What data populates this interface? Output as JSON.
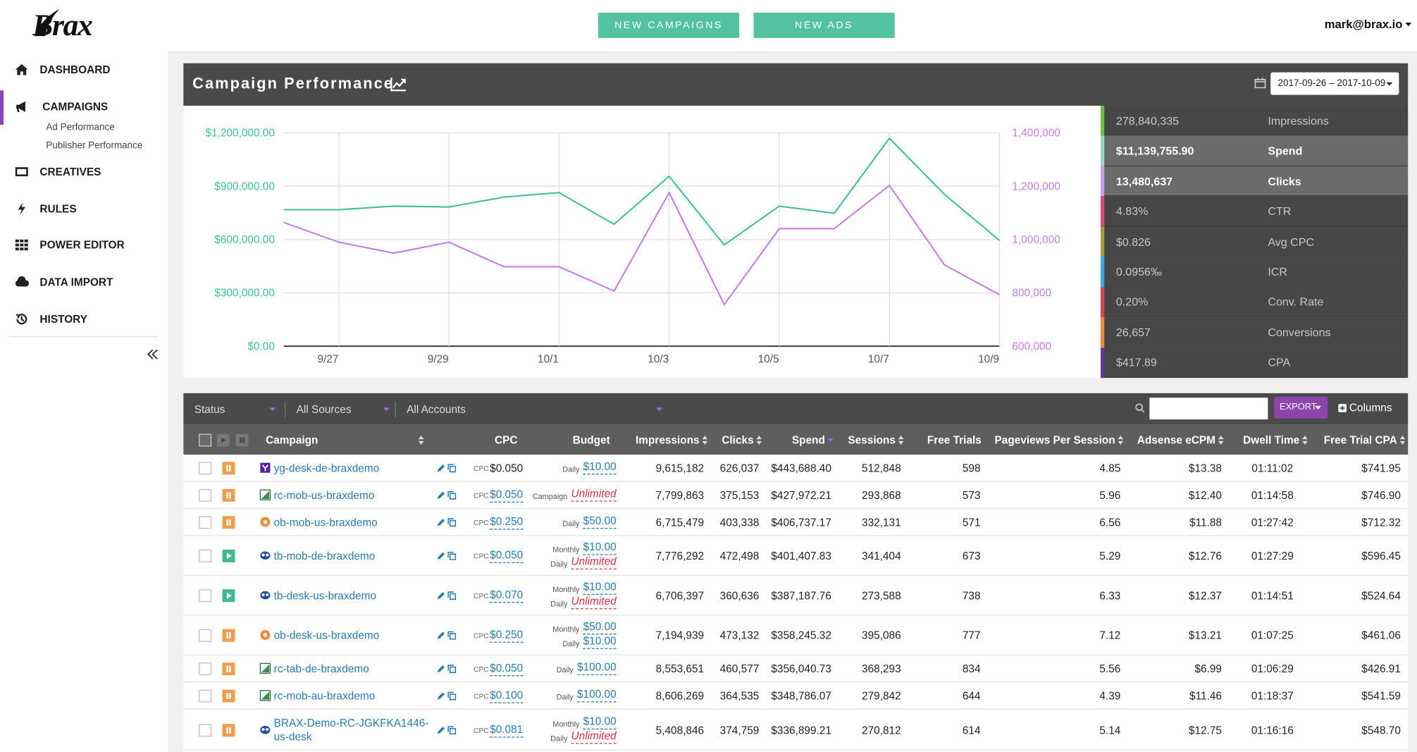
{
  "header": {
    "logo": "Brax",
    "buttons": [
      "NEW CAMPAIGNS",
      "NEW ADS"
    ],
    "user": "mark@brax.io"
  },
  "sidebar": {
    "nav": [
      "DASHBOARD",
      "CAMPAIGNS",
      "CREATIVES",
      "RULES",
      "POWER EDITOR",
      "DATA IMPORT",
      "HISTORY"
    ],
    "active": 1,
    "sub": [
      "Ad Performance",
      "Publisher Performance"
    ]
  },
  "panel": {
    "title": "Campaign Performance",
    "date_range": "2017-09-26 – 2017-10-09"
  },
  "chart_data": {
    "type": "line",
    "categories": [
      null,
      "9/27",
      null,
      "9/29",
      null,
      "10/1",
      null,
      "10/3",
      null,
      "10/5",
      null,
      "10/7",
      null,
      "10/9"
    ],
    "series": [
      {
        "color": "#3cbf94",
        "values": [
          768000,
          768000,
          788000,
          783000,
          839000,
          864000,
          686000,
          956000,
          570000,
          788000,
          748000,
          1170000,
          854000,
          595000
        ]
      },
      {
        "color": "#c27ce6",
        "axis": "y2",
        "values": [
          1064000,
          990000,
          949000,
          990000,
          898000,
          898000,
          807000,
          1176000,
          756000,
          1041000,
          1041000,
          1203000,
          905000,
          793000
        ]
      }
    ],
    "ylim": [
      0,
      1200000
    ],
    "yticks": [
      {
        "value": 0,
        "label": "$0.00"
      },
      {
        "value": 300000,
        "label": "$300,000.00"
      },
      {
        "value": 600000,
        "label": "$600,000.00"
      },
      {
        "value": 900000,
        "label": "$900,000.00"
      },
      {
        "value": 1200000,
        "label": "$1,200,000.00"
      }
    ],
    "y2lim": [
      600000,
      1400000
    ],
    "y2ticks": [
      {
        "value": 600000,
        "label": "600,000"
      },
      {
        "value": 800000,
        "label": "800,000"
      },
      {
        "value": 1000000,
        "label": "1,000,000"
      },
      {
        "value": 1200000,
        "label": "1,200,000"
      },
      {
        "value": 1400000,
        "label": "1,400,000"
      }
    ],
    "grid": true
  },
  "stats": [
    {
      "value": "278,840,335",
      "label": "Impressions",
      "color": "#6cc04a",
      "selected": false
    },
    {
      "value": "$11,139,755.90",
      "label": "Spend",
      "color": "#9fd6bf",
      "selected": true
    },
    {
      "value": "13,480,637",
      "label": "Clicks",
      "color": "#c99be8",
      "selected": true
    },
    {
      "value": "4.83%",
      "label": "CTR",
      "color": "#e0457b",
      "selected": false
    },
    {
      "value": "$0.826",
      "label": "Avg CPC",
      "color": "#a3a03a",
      "selected": false
    },
    {
      "value": "0.0956‰",
      "label": "ICR",
      "color": "#3aa8e0",
      "selected": false
    },
    {
      "value": "0.20%",
      "label": "Conv. Rate",
      "color": "#d9434e",
      "selected": false
    },
    {
      "value": "26,657",
      "label": "Conversions",
      "color": "#f0883e",
      "selected": false
    },
    {
      "value": "$417.89",
      "label": "CPA",
      "color": "#5b3a9a",
      "selected": false
    }
  ],
  "toolbar": {
    "filters": [
      "Status",
      "All Sources",
      "All Accounts"
    ],
    "export": "EXPORT",
    "columns": "Columns"
  },
  "table": {
    "columns": [
      "Campaign",
      "CPC",
      "Budget",
      "Impressions",
      "Clicks",
      "Spend",
      "Sessions",
      "Free Trials",
      "Pageviews Per Session",
      "Adsense eCPM",
      "Dwell Time",
      "Free Trial CPA"
    ],
    "rows": [
      {
        "status": "paused",
        "network": "yahoo",
        "campaign": "yg-desk-de-braxdemo",
        "cpc": {
          "label": "CPC",
          "value": "$0.050"
        },
        "budget": [
          {
            "period": "Daily",
            "amount": "$10.00"
          }
        ],
        "cells": [
          "9,615,182",
          "626,037",
          "$443,688.40",
          "512,848",
          "598",
          "4.85",
          "$13.38",
          "01:11:02",
          "$741.95"
        ]
      },
      {
        "status": "paused",
        "network": "revcontent",
        "campaign": "rc-mob-us-braxdemo",
        "cpc": {
          "label": "CPC",
          "value": "$0.050"
        },
        "budget": [
          {
            "period": "Campaign",
            "amount": "Unlimited",
            "unlimited": true
          }
        ],
        "cells": [
          "7,799,863",
          "375,153",
          "$427,972.21",
          "293,868",
          "573",
          "5.96",
          "$12.40",
          "01:14:58",
          "$746.90"
        ]
      },
      {
        "status": "paused",
        "network": "outbrain",
        "campaign": "ob-mob-us-braxdemo",
        "cpc": {
          "label": "CPC",
          "value": "$0.250"
        },
        "budget": [
          {
            "period": "Daily",
            "amount": "$50.00"
          }
        ],
        "cells": [
          "6,715,479",
          "403,338",
          "$406,737.17",
          "332,131",
          "571",
          "6.56",
          "$11.88",
          "01:27:42",
          "$712.32"
        ]
      },
      {
        "status": "active",
        "network": "taboola",
        "campaign": "tb-mob-de-braxdemo",
        "cpc": {
          "label": "CPC",
          "value": "$0.050"
        },
        "budget": [
          {
            "period": "Monthly",
            "amount": "$10.00"
          },
          {
            "period": "Daily",
            "amount": "Unlimited",
            "unlimited": true
          }
        ],
        "cells": [
          "7,776,292",
          "472,498",
          "$401,407.83",
          "341,404",
          "673",
          "5.29",
          "$12.76",
          "01:27:29",
          "$596.45"
        ]
      },
      {
        "status": "active",
        "network": "taboola",
        "campaign": "tb-desk-us-braxdemo",
        "cpc": {
          "label": "CPC",
          "value": "$0.070"
        },
        "budget": [
          {
            "period": "Monthly",
            "amount": "$10.00"
          },
          {
            "period": "Daily",
            "amount": "Unlimited",
            "unlimited": true
          }
        ],
        "cells": [
          "6,706,397",
          "360,636",
          "$387,187.76",
          "273,588",
          "738",
          "6.33",
          "$12.37",
          "01:14:51",
          "$524.64"
        ]
      },
      {
        "status": "paused",
        "network": "outbrain",
        "campaign": "ob-desk-us-braxdemo",
        "cpc": {
          "label": "CPC",
          "value": "$0.250"
        },
        "budget": [
          {
            "period": "Monthly",
            "amount": "$50.00"
          },
          {
            "period": "Daily",
            "amount": "$10.00"
          }
        ],
        "cells": [
          "7,194,939",
          "473,132",
          "$358,245.32",
          "395,086",
          "777",
          "7.12",
          "$13.21",
          "01:07:25",
          "$461.06"
        ]
      },
      {
        "status": "paused",
        "network": "revcontent",
        "campaign": "rc-tab-de-braxdemo",
        "cpc": {
          "label": "CPC",
          "value": "$0.050"
        },
        "budget": [
          {
            "period": "Daily",
            "amount": "$100.00"
          }
        ],
        "cells": [
          "8,553,651",
          "460,577",
          "$356,040.73",
          "368,293",
          "834",
          "5.56",
          "$6.99",
          "01:06:29",
          "$426.91"
        ]
      },
      {
        "status": "paused",
        "network": "revcontent",
        "campaign": "rc-mob-au-braxdemo",
        "cpc": {
          "label": "CPC",
          "value": "$0.100"
        },
        "budget": [
          {
            "period": "Daily",
            "amount": "$100.00"
          }
        ],
        "cells": [
          "8,606,269",
          "364,535",
          "$348,786.07",
          "279,842",
          "644",
          "4.39",
          "$11.46",
          "01:18:37",
          "$541.59"
        ]
      },
      {
        "status": "paused",
        "network": "taboola",
        "campaign": "BRAX-Demo-RC-JGKFKA1446-us-desk",
        "cpc": {
          "label": "CPC",
          "value": "$0.081"
        },
        "budget": [
          {
            "period": "Monthly",
            "amount": "$10.00"
          },
          {
            "period": "Daily",
            "amount": "Unlimited",
            "unlimited": true
          }
        ],
        "cells": [
          "5,408,846",
          "374,759",
          "$336,899.21",
          "270,812",
          "614",
          "5.14",
          "$12.75",
          "01:16:16",
          "$548.70"
        ]
      }
    ]
  }
}
